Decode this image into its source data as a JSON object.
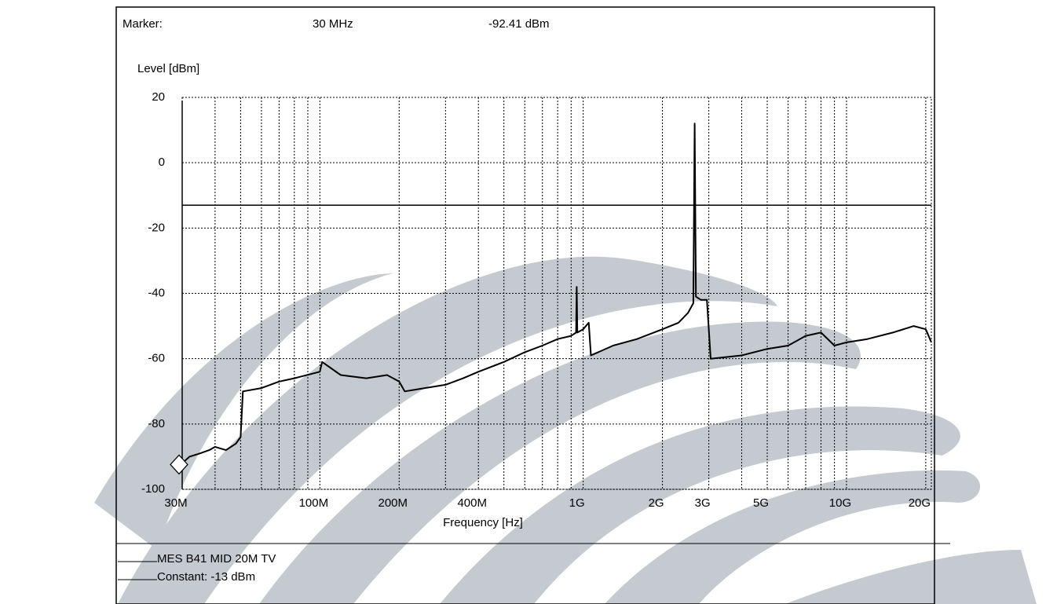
{
  "chart_data": {
    "type": "line",
    "marker": {
      "label": "Marker:",
      "x_label": "30 MHz",
      "y_label": "-92.41 dBm",
      "x": 30000000,
      "y": -92.41
    },
    "y_label": "Level [dBm]",
    "x_label": "Frequency [Hz]",
    "log_x": true,
    "grid": true,
    "minor_grid": true,
    "xlim": [
      30000000,
      21000000000
    ],
    "ylim": [
      -100,
      20
    ],
    "yticks": [
      -100,
      -80,
      -60,
      -40,
      -20,
      0,
      20
    ],
    "xticks": [
      {
        "value": 30000000,
        "label": "30M"
      },
      {
        "value": 100000000,
        "label": "100M"
      },
      {
        "value": 200000000,
        "label": "200M"
      },
      {
        "value": 400000000,
        "label": "400M"
      },
      {
        "value": 1000000000,
        "label": "1G"
      },
      {
        "value": 2000000000,
        "label": "2G"
      },
      {
        "value": 3000000000,
        "label": "3G"
      },
      {
        "value": 5000000000,
        "label": "5G"
      },
      {
        "value": 10000000000,
        "label": "10G"
      },
      {
        "value": 20000000000,
        "label": "20G"
      }
    ],
    "series": [
      {
        "name": "MES B41 MID 20M TV",
        "color": "#000000",
        "x": [
          30000000,
          32000000,
          35000000,
          38000000,
          40000000,
          44000000,
          48000000,
          50000000,
          51000000,
          60000000,
          70000000,
          80000000,
          100000000,
          102000000,
          120000000,
          150000000,
          180000000,
          200000000,
          210000000,
          250000000,
          300000000,
          350000000,
          400000000,
          500000000,
          600000000,
          700000000,
          800000000,
          900000000,
          940000000,
          945000000,
          950000000,
          1000000000,
          1050000000,
          1070000000,
          1300000000,
          1600000000,
          2000000000,
          2300000000,
          2500000000,
          2620000000,
          2650000000,
          2680000000,
          2800000000,
          2950000000,
          3050000000,
          4000000000,
          5000000000,
          6000000000,
          7000000000,
          8000000000,
          9000000000,
          10000000000,
          12000000000,
          15000000000,
          18000000000,
          20000000000,
          21000000000
        ],
        "values": [
          -92,
          -90,
          -89,
          -88,
          -87,
          -88,
          -86,
          -84,
          -70,
          -69,
          -67,
          -66,
          -64,
          -61,
          -65,
          -66,
          -65,
          -67,
          -70,
          -69,
          -68,
          -66,
          -64,
          -61,
          -58,
          -56,
          -54,
          -53,
          -52,
          -38,
          -52,
          -51,
          -49,
          -59,
          -56,
          -54,
          -51,
          -49,
          -46,
          -43,
          12,
          -41,
          -42,
          -42,
          -60,
          -59,
          -57,
          -56,
          -53,
          -52,
          -56,
          -55,
          -54,
          -52,
          -50,
          -51,
          -55
        ]
      }
    ],
    "limit_line": {
      "name": "Constant: -13 dBm",
      "value": -13,
      "color": "#000000"
    }
  }
}
